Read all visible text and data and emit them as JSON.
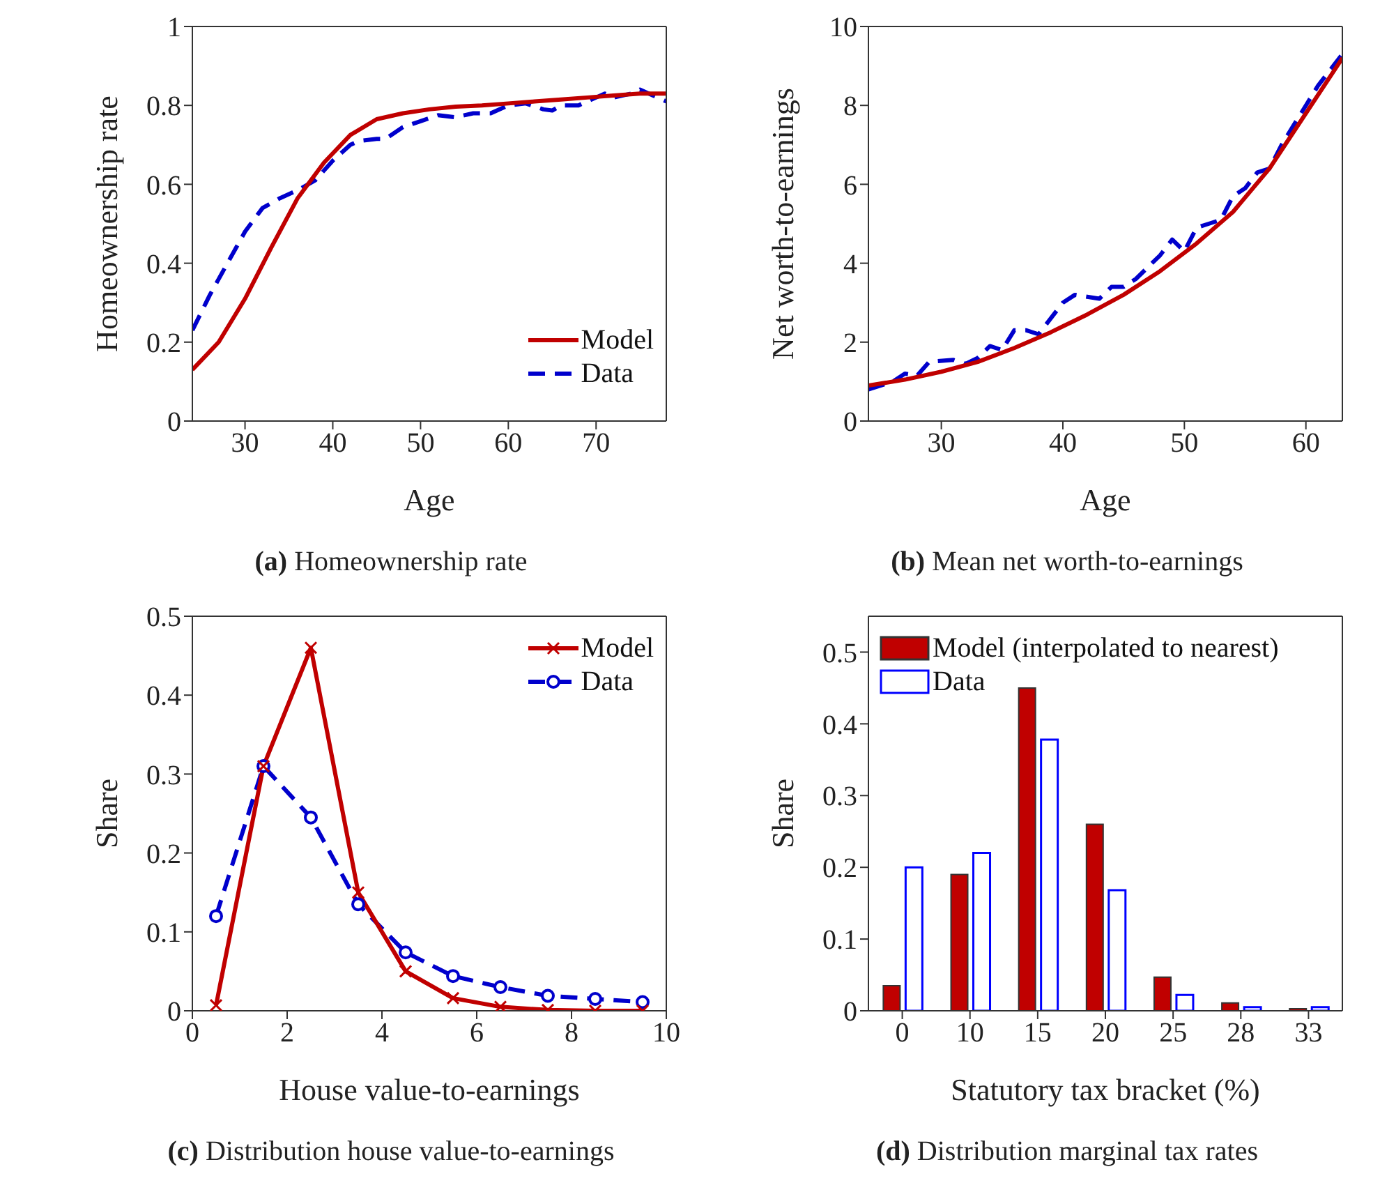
{
  "chart_data": [
    {
      "type": "line",
      "title": "(a) Homeownership rate",
      "xlabel": "Age",
      "ylabel": "Homeownership rate",
      "xlim": [
        24,
        78
      ],
      "xticks": [
        30,
        40,
        50,
        60,
        70
      ],
      "ylim": [
        0,
        1
      ],
      "yticks": [
        0,
        0.2,
        0.4,
        0.6,
        0.8,
        1
      ],
      "legend": "bottom right",
      "series": [
        {
          "name": "Model",
          "color": "#c00000",
          "line_style": "solid",
          "x": [
            24,
            27,
            30,
            33,
            36,
            39,
            42,
            45,
            48,
            51,
            54,
            57,
            60,
            63,
            66,
            69,
            72,
            75,
            78
          ],
          "values": [
            0.13,
            0.2,
            0.31,
            0.44,
            0.565,
            0.655,
            0.725,
            0.765,
            0.78,
            0.79,
            0.797,
            0.8,
            0.805,
            0.81,
            0.815,
            0.82,
            0.825,
            0.83,
            0.83
          ]
        },
        {
          "name": "Data",
          "color": "#0000cc",
          "line_style": "dashed",
          "x": [
            24,
            26,
            28,
            30,
            32,
            34,
            36,
            38,
            40,
            42,
            43,
            45,
            46,
            48,
            50,
            52,
            54,
            56,
            58,
            60,
            62,
            64,
            65,
            66,
            68,
            70,
            71,
            72,
            74,
            75,
            76,
            78
          ],
          "values": [
            0.23,
            0.32,
            0.4,
            0.48,
            0.54,
            0.565,
            0.585,
            0.61,
            0.66,
            0.7,
            0.71,
            0.715,
            0.715,
            0.745,
            0.76,
            0.775,
            0.77,
            0.78,
            0.78,
            0.8,
            0.805,
            0.79,
            0.787,
            0.8,
            0.8,
            0.82,
            0.83,
            0.82,
            0.83,
            0.84,
            0.83,
            0.81
          ]
        }
      ]
    },
    {
      "type": "line",
      "title": "(b) Mean net worth-to-earnings",
      "xlabel": "Age",
      "ylabel": "Net worth-to-earnings",
      "xlim": [
        24,
        63
      ],
      "xticks": [
        30,
        40,
        50,
        60
      ],
      "ylim": [
        0,
        10
      ],
      "yticks": [
        0,
        2,
        4,
        6,
        8,
        10
      ],
      "series": [
        {
          "color": "#c00000",
          "line_style": "solid",
          "x": [
            24,
            27,
            30,
            33,
            36,
            39,
            42,
            45,
            48,
            51,
            54,
            57,
            60,
            63
          ],
          "values": [
            0.9,
            1.05,
            1.25,
            1.5,
            1.85,
            2.25,
            2.7,
            3.2,
            3.8,
            4.5,
            5.3,
            6.4,
            7.8,
            9.2
          ]
        },
        {
          "color": "#0000cc",
          "line_style": "dashed",
          "x": [
            24,
            26,
            27,
            28,
            29,
            31,
            32,
            33,
            34,
            35,
            36,
            37,
            38,
            40,
            41,
            43,
            44,
            45,
            46,
            48,
            49,
            50,
            51,
            52,
            53,
            54,
            55,
            56,
            57,
            58,
            60,
            61,
            63
          ],
          "values": [
            0.8,
            1.0,
            1.2,
            1.15,
            1.5,
            1.55,
            1.45,
            1.6,
            1.9,
            1.8,
            2.3,
            2.3,
            2.2,
            3.0,
            3.2,
            3.1,
            3.4,
            3.4,
            3.6,
            4.2,
            4.6,
            4.3,
            4.9,
            5.0,
            5.1,
            5.7,
            5.9,
            6.3,
            6.4,
            7.0,
            8.0,
            8.5,
            9.3
          ]
        }
      ]
    },
    {
      "type": "line",
      "title": "(c) Distribution house value-to-earnings",
      "xlabel": "House value-to-earnings",
      "ylabel": "Share",
      "xlim": [
        0,
        10
      ],
      "xticks": [
        0,
        2,
        4,
        6,
        8,
        10
      ],
      "ylim": [
        0,
        0.5
      ],
      "yticks": [
        0,
        0.1,
        0.2,
        0.3,
        0.4,
        0.5
      ],
      "legend": "top right",
      "series": [
        {
          "name": "Model",
          "color": "#c00000",
          "line_style": "solid",
          "marker": "cross",
          "x": [
            0.5,
            1.5,
            2.5,
            3.5,
            4.5,
            5.5,
            6.5,
            7.5,
            8.5,
            9.5
          ],
          "values": [
            0.007,
            0.31,
            0.46,
            0.15,
            0.05,
            0.016,
            0.005,
            0.001,
            0,
            0
          ]
        },
        {
          "name": "Data",
          "color": "#0000cc",
          "line_style": "dashed",
          "marker": "circle",
          "x": [
            0.5,
            1.5,
            2.5,
            3.5,
            4.5,
            5.5,
            6.5,
            7.5,
            8.5,
            9.5
          ],
          "values": [
            0.12,
            0.31,
            0.245,
            0.135,
            0.074,
            0.044,
            0.03,
            0.019,
            0.015,
            0.011
          ]
        }
      ]
    },
    {
      "type": "bar",
      "title": "(d) Distribution marginal tax rates",
      "xlabel": "Statutory tax bracket (%)",
      "ylabel": "Share",
      "categories": [
        "0",
        "10",
        "15",
        "20",
        "25",
        "28",
        "33"
      ],
      "ylim": [
        0,
        0.55
      ],
      "yticks": [
        0,
        0.1,
        0.2,
        0.3,
        0.4,
        0.5
      ],
      "legend": "top left",
      "series": [
        {
          "name": "Model (interpolated to nearest)",
          "color": "#c00000",
          "values": [
            0.035,
            0.19,
            0.45,
            0.26,
            0.047,
            0.011,
            0.003
          ]
        },
        {
          "name": "Data",
          "color": "#0000ff",
          "values": [
            0.2,
            0.22,
            0.378,
            0.168,
            0.022,
            0.005,
            0.005
          ]
        }
      ]
    }
  ]
}
